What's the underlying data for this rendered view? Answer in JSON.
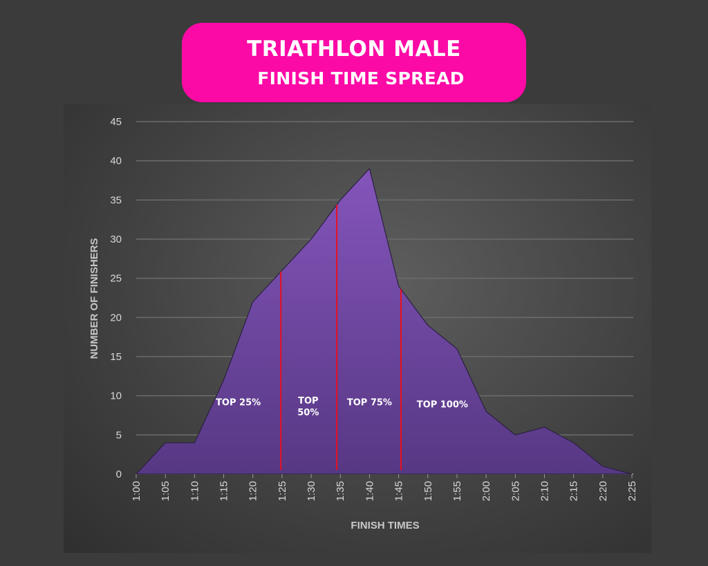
{
  "title": {
    "line1": "TRIATHLON MALE",
    "line2": "FINISH TIME SPREAD"
  },
  "colors": {
    "title_bg": "#fc0aa6",
    "area_top": "#8455bb",
    "area_bottom": "#573884",
    "divider": "#e8101e"
  },
  "chart_data": {
    "type": "area",
    "title": "TRIATHLON MALE FINISH TIME SPREAD",
    "xlabel": "FINISH TIMES",
    "ylabel": "NUMBER OF FINISHERS",
    "categories": [
      "1:00",
      "1:05",
      "1:10",
      "1:15",
      "1:20",
      "1:25",
      "1:30",
      "1:35",
      "1:40",
      "1:45",
      "1:50",
      "1:55",
      "2:00",
      "2:05",
      "2:10",
      "2:15",
      "2:20",
      "2:25"
    ],
    "values": [
      0,
      4,
      4,
      12,
      22,
      26,
      30,
      35,
      39,
      24,
      19,
      16,
      8,
      5,
      6,
      4,
      1,
      0
    ],
    "ylim": [
      0,
      45
    ],
    "yticks": [
      0,
      5,
      10,
      15,
      20,
      25,
      30,
      35,
      40,
      45
    ],
    "grid": true,
    "dividers": [
      {
        "minutes": 84.8
      },
      {
        "minutes": 94.4
      },
      {
        "minutes": 105.4
      }
    ],
    "segment_labels": [
      {
        "lines": [
          "TOP 25%"
        ],
        "minutes": 77.5,
        "value": 8.8
      },
      {
        "lines": [
          "TOP",
          "50%"
        ],
        "minutes": 89.5,
        "value": 9
      },
      {
        "lines": [
          "TOP 75%"
        ],
        "minutes": 100,
        "value": 8.8
      },
      {
        "lines": [
          "TOP 100%"
        ],
        "minutes": 112.5,
        "value": 8.5
      }
    ]
  }
}
